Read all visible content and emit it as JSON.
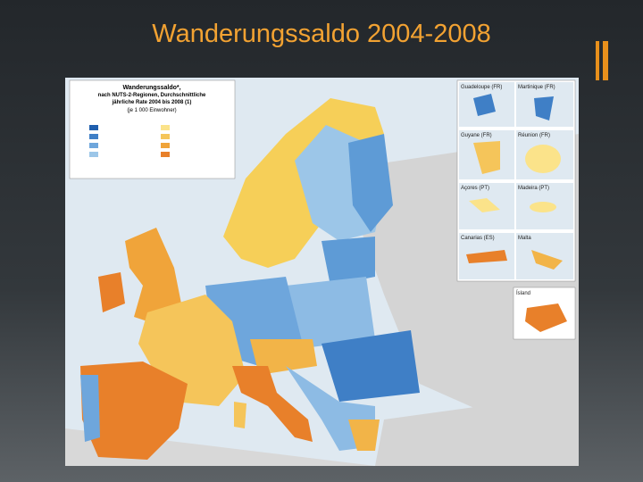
{
  "slide": {
    "title": "Wanderungssaldo 2004-2008"
  },
  "map": {
    "title_lines": [
      "Wanderungssaldo*,",
      "nach NUTS-2-Regionen, Durchschnittliche",
      "jährliche Rate 2004 bis 2008 (1)"
    ],
    "unit": "(je 1 000 Einwohner)",
    "insets": [
      "Guadeloupe (FR)",
      "Martinique (FR)",
      "Guyane (FR)",
      "Réunion (FR)",
      "Açores (PT)",
      "Madeira (PT)",
      "Canarias (ES)",
      "Malta",
      "Ísland"
    ]
  }
}
